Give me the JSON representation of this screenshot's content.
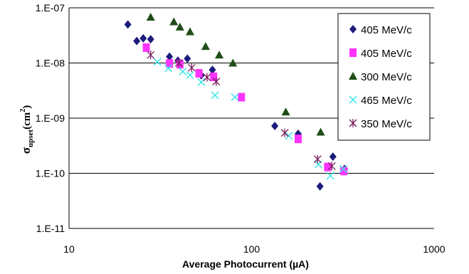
{
  "chart_data": {
    "type": "scatter",
    "title": "",
    "xlabel": "Average Photocurrent (µA)",
    "ylabel": {
      "symbol": "σ",
      "subscript": "upset",
      "unit_open": "(cm",
      "unit_power": "2",
      "unit_close": ")"
    },
    "x_scale": "log",
    "y_scale": "log",
    "xlim": [
      10,
      1000
    ],
    "ylim": [
      1e-11,
      1e-07
    ],
    "x_ticks": [
      {
        "value": 10,
        "label": "10"
      },
      {
        "value": 100,
        "label": "100"
      },
      {
        "value": 1000,
        "label": "1000"
      }
    ],
    "y_ticks": [
      {
        "value": 1e-07,
        "label": "1.E-07"
      },
      {
        "value": 1e-08,
        "label": "1.E-08"
      },
      {
        "value": 1e-09,
        "label": "1.E-09"
      },
      {
        "value": 1e-10,
        "label": "1.E-10"
      },
      {
        "value": 1e-11,
        "label": "1.E-11"
      }
    ],
    "grid": "horizontal major",
    "legend_position": "top-right",
    "series": [
      {
        "name": "405 MeV/c",
        "marker": "diamond",
        "color": "#1c1c7c",
        "points": [
          [
            21,
            5e-08
          ],
          [
            23.5,
            2.5e-08
          ],
          [
            25.5,
            2.8e-08
          ],
          [
            28,
            2.7e-08
          ],
          [
            35.5,
            1.3e-08
          ],
          [
            39.5,
            1.1e-08
          ],
          [
            44.5,
            1.2e-08
          ],
          [
            53,
            6e-09
          ],
          [
            61,
            7.5e-09
          ],
          [
            134,
            7.2e-10
          ],
          [
            180,
            5.2e-10
          ],
          [
            237,
            5.8e-11
          ],
          [
            279,
            2e-10
          ],
          [
            323,
            1.2e-10
          ]
        ]
      },
      {
        "name": "405 MeV/c",
        "marker": "square",
        "color": "#ff33ff",
        "points": [
          [
            26.5,
            1.9e-08
          ],
          [
            35.5,
            9.8e-09
          ],
          [
            40.5,
            9.5e-09
          ],
          [
            51.5,
            6.5e-09
          ],
          [
            62,
            5.6e-09
          ],
          [
            88,
            2.4e-09
          ],
          [
            180,
            4.2e-10
          ],
          [
            261,
            1.3e-10
          ],
          [
            320,
            1.1e-10
          ]
        ]
      },
      {
        "name": "300 MeV/c",
        "marker": "triangle",
        "color": "#1e4d16",
        "points": [
          [
            28,
            6.8e-08
          ],
          [
            37.5,
            5.6e-08
          ],
          [
            40.5,
            4.5e-08
          ],
          [
            46,
            3.7e-08
          ],
          [
            56,
            2e-08
          ],
          [
            66.5,
            1.4e-08
          ],
          [
            79,
            1e-08
          ],
          [
            154,
            1.3e-09
          ],
          [
            239,
            5.6e-10
          ]
        ]
      },
      {
        "name": "465 MeV/c",
        "marker": "x",
        "color": "#33e6e6",
        "points": [
          [
            30.5,
            1.05e-08
          ],
          [
            35,
            8e-09
          ],
          [
            42,
            7e-09
          ],
          [
            46,
            6e-09
          ],
          [
            53,
            4.5e-09
          ],
          [
            63,
            2.6e-09
          ],
          [
            81,
            2.4e-09
          ],
          [
            160,
            4.8e-10
          ],
          [
            232,
            1.45e-10
          ],
          [
            270,
            9e-11
          ],
          [
            318,
            1.2e-10
          ]
        ]
      },
      {
        "name": "350 MeV/c",
        "marker": "asterisk",
        "color": "#7a1c5c",
        "points": [
          [
            28,
            1.4e-08
          ],
          [
            40,
            1e-08
          ],
          [
            47,
            8.2e-09
          ],
          [
            57,
            5.5e-09
          ],
          [
            64,
            4.6e-09
          ],
          [
            152,
            5.4e-10
          ],
          [
            230,
            1.8e-10
          ],
          [
            275,
            1.35e-10
          ]
        ]
      }
    ]
  }
}
